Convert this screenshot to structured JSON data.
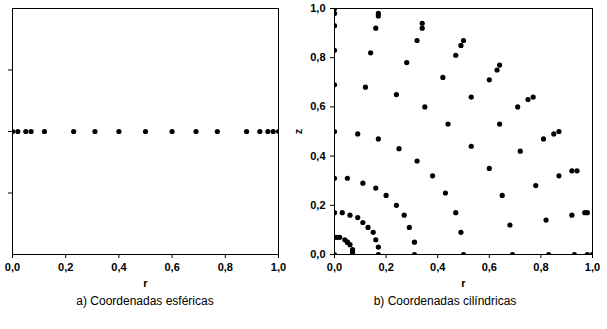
{
  "chart_data": [
    {
      "type": "scatter",
      "caption": "a)  Coordenadas esféricas",
      "xlabel": "r",
      "color": "#000000",
      "marker": "circle",
      "grid": false,
      "tick_labels": "x",
      "x": [
        0.0,
        0.02,
        0.05,
        0.07,
        0.12,
        0.23,
        0.31,
        0.4,
        0.5,
        0.6,
        0.69,
        0.77,
        0.88,
        0.93,
        0.96,
        0.98,
        1.0
      ],
      "values": [
        0,
        0,
        0,
        0,
        0,
        0,
        0,
        0,
        0,
        0,
        0,
        0,
        0,
        0,
        0,
        0,
        0
      ],
      "xlim": [
        0,
        1
      ],
      "ylim": [
        -1,
        1
      ],
      "xticks": [
        {
          "value": 0,
          "label": "0,0"
        },
        {
          "value": 0.2,
          "label": "0,2"
        },
        {
          "value": 0.4,
          "label": "0,4"
        },
        {
          "value": 0.6,
          "label": "0,6"
        },
        {
          "value": 0.8,
          "label": "0,8"
        },
        {
          "value": 1,
          "label": "1,0"
        }
      ],
      "yticks": [
        -0.5,
        0,
        0.5
      ]
    },
    {
      "type": "scatter",
      "caption": "b)  Coordenadas cilíndricas",
      "xlabel": "r",
      "ylabel": "z",
      "color": "#000000",
      "marker": "circle",
      "grid": false,
      "x": [
        0,
        0.07,
        0.17,
        0.31,
        0.5,
        0.69,
        0.83,
        0.93,
        0.98,
        1.0,
        0.07,
        0.17,
        0.31,
        0.49,
        0.68,
        0.82,
        0.92,
        0.97,
        0.98,
        0.07,
        0.16,
        0.29,
        0.47,
        0.65,
        0.78,
        0.87,
        0.92,
        0.94,
        0.06,
        0.15,
        0.27,
        0.43,
        0.6,
        0.72,
        0.81,
        0.85,
        0.87,
        0.05,
        0.13,
        0.24,
        0.38,
        0.53,
        0.64,
        0.71,
        0.75,
        0.77,
        0.05,
        0.11,
        0.2,
        0.32,
        0.44,
        0.53,
        0.6,
        0.63,
        0.64,
        0.04,
        0.09,
        0.16,
        0.25,
        0.35,
        0.42,
        0.47,
        0.49,
        0.5,
        0.02,
        0.06,
        0.11,
        0.17,
        0.24,
        0.28,
        0.32,
        0.34,
        0.34,
        0.01,
        0.03,
        0.05,
        0.09,
        0.12,
        0.14,
        0.16,
        0.17,
        0.17,
        0,
        0,
        0,
        0,
        0,
        0,
        0,
        0,
        0
      ],
      "values": [
        0,
        0,
        0,
        0,
        0,
        0,
        0,
        0,
        0,
        0,
        0.01,
        0.03,
        0.05,
        0.09,
        0.12,
        0.14,
        0.16,
        0.17,
        0.17,
        0.02,
        0.06,
        0.11,
        0.17,
        0.24,
        0.28,
        0.32,
        0.34,
        0.34,
        0.04,
        0.09,
        0.16,
        0.25,
        0.35,
        0.42,
        0.47,
        0.49,
        0.5,
        0.05,
        0.11,
        0.2,
        0.32,
        0.44,
        0.53,
        0.6,
        0.63,
        0.64,
        0.05,
        0.13,
        0.24,
        0.38,
        0.53,
        0.64,
        0.71,
        0.75,
        0.77,
        0.06,
        0.15,
        0.27,
        0.43,
        0.6,
        0.72,
        0.81,
        0.85,
        0.87,
        0.07,
        0.16,
        0.29,
        0.47,
        0.65,
        0.78,
        0.87,
        0.92,
        0.94,
        0.07,
        0.17,
        0.31,
        0.49,
        0.68,
        0.82,
        0.92,
        0.97,
        0.98,
        0.07,
        0.17,
        0.31,
        0.5,
        0.69,
        0.83,
        0.93,
        0.98,
        1.0
      ],
      "xlim": [
        0,
        1
      ],
      "ylim": [
        0,
        1
      ],
      "xticks": [
        {
          "value": 0,
          "label": "0,0"
        },
        {
          "value": 0.2,
          "label": "0,2"
        },
        {
          "value": 0.4,
          "label": "0,4"
        },
        {
          "value": 0.6,
          "label": "0,6"
        },
        {
          "value": 0.8,
          "label": "0,8"
        },
        {
          "value": 1,
          "label": "1,0"
        }
      ],
      "yticks": [
        {
          "value": 0,
          "label": "0,0"
        },
        {
          "value": 0.2,
          "label": "0,2"
        },
        {
          "value": 0.4,
          "label": "0,4"
        },
        {
          "value": 0.6,
          "label": "0,6"
        },
        {
          "value": 0.8,
          "label": "0,8"
        },
        {
          "value": 1,
          "label": "1,0"
        }
      ]
    }
  ]
}
